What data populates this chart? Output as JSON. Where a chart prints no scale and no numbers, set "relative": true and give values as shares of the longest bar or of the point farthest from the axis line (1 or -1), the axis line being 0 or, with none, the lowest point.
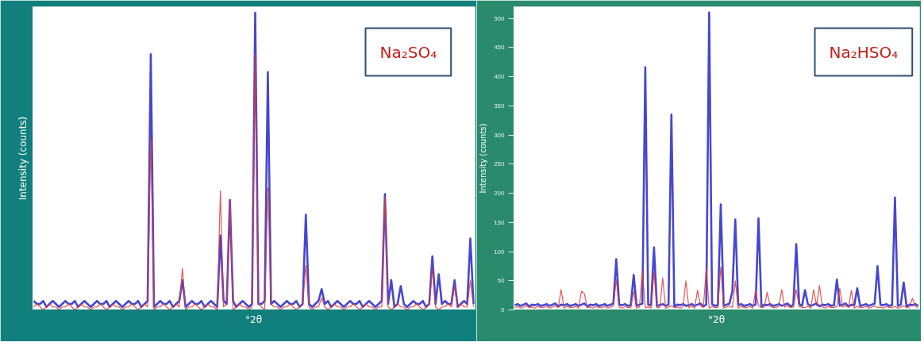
{
  "chart_data": [
    {
      "type": "line",
      "relative": true,
      "ylabel": "Intensity (counts)",
      "xlabel": "°2θ",
      "annotations": [
        "Na₂SO₄"
      ],
      "tick_labels": false,
      "grid": false,
      "marker": "none",
      "categories": [
        null,
        null,
        null,
        null,
        null,
        null,
        null,
        null,
        null,
        null,
        null,
        null,
        null,
        null,
        null,
        null,
        null,
        null,
        null,
        null,
        null,
        null,
        null,
        null,
        null,
        null,
        null,
        null,
        null,
        null,
        null,
        null,
        null,
        null,
        null,
        null,
        null,
        null,
        null,
        null,
        null,
        null,
        null,
        null,
        null,
        null,
        null,
        null,
        null,
        null,
        null,
        null,
        null,
        null,
        null,
        null,
        null,
        null,
        null,
        null,
        null,
        null,
        null,
        null,
        null,
        null,
        null,
        null,
        null,
        null,
        null,
        null,
        null,
        null,
        null,
        null,
        null,
        null,
        null,
        null,
        null,
        null,
        null,
        null,
        null,
        null,
        null,
        null,
        null,
        null,
        null,
        null,
        null,
        null,
        null,
        null,
        null,
        null,
        null,
        null,
        null,
        null,
        null,
        null,
        null,
        null,
        null,
        null,
        null,
        null,
        null,
        null,
        null,
        null,
        null,
        null,
        null,
        null,
        null,
        null,
        null,
        null,
        null,
        null,
        null,
        null,
        null,
        null,
        null,
        null,
        null,
        null,
        null,
        null,
        null,
        null,
        null,
        null,
        null,
        null
      ],
      "series": [
        {
          "color": "#2626c8",
          "values": [
            0.03,
            0.02,
            0.02,
            0.03,
            0.01,
            0.02,
            0.03,
            0.02,
            0.01,
            0.02,
            0.03,
            0.02,
            0.02,
            0.03,
            0.01,
            0.02,
            0.03,
            0.02,
            0.01,
            0.02,
            0.03,
            0.02,
            0.02,
            0.03,
            0.01,
            0.02,
            0.03,
            0.02,
            0.01,
            0.02,
            0.03,
            0.02,
            0.02,
            0.03,
            0.01,
            0.02,
            0.03,
            0.86,
            0.01,
            0.02,
            0.03,
            0.02,
            0.02,
            0.03,
            0.01,
            0.02,
            0.03,
            0.1,
            0.01,
            0.02,
            0.03,
            0.02,
            0.02,
            0.03,
            0.01,
            0.02,
            0.03,
            0.02,
            0.01,
            0.25,
            0.03,
            0.02,
            0.37,
            0.03,
            0.01,
            0.02,
            0.03,
            0.02,
            0.01,
            0.02,
            1,
            0.02,
            0.02,
            0.03,
            0.8,
            0.02,
            0.03,
            0.02,
            0.01,
            0.02,
            0.03,
            0.02,
            0.02,
            0.03,
            0.01,
            0.02,
            0.32,
            0.02,
            0.01,
            0.02,
            0.03,
            0.07,
            0.02,
            0.03,
            0.01,
            0.02,
            0.03,
            0.02,
            0.01,
            0.02,
            0.03,
            0.02,
            0.02,
            0.03,
            0.01,
            0.02,
            0.03,
            0.02,
            0.01,
            0.02,
            0.03,
            0.39,
            0.02,
            0.1,
            0.01,
            0.02,
            0.08,
            0.02,
            0.01,
            0.02,
            0.03,
            0.02,
            0.02,
            0.03,
            0.01,
            0.02,
            0.18,
            0.02,
            0.12,
            0.02,
            0.03,
            0.02,
            0.02,
            0.1,
            0.01,
            0.02,
            0.03,
            0.02,
            0.24,
            0.02
          ]
        },
        {
          "color": "#e03a3a",
          "values": [
            0.01,
            0.02,
            0.01,
            0.0,
            0.01,
            0.02,
            0.01,
            0.01,
            0.0,
            0.01,
            0.01,
            0.02,
            0.01,
            0.0,
            0.01,
            0.02,
            0.01,
            0.01,
            0.0,
            0.01,
            0.01,
            0.02,
            0.01,
            0.0,
            0.01,
            0.02,
            0.01,
            0.01,
            0.0,
            0.01,
            0.01,
            0.02,
            0.01,
            0.0,
            0.01,
            0.02,
            0.01,
            0.58,
            0.0,
            0.01,
            0.01,
            0.02,
            0.01,
            0.0,
            0.01,
            0.02,
            0.01,
            0.14,
            0.0,
            0.01,
            0.01,
            0.02,
            0.01,
            0.0,
            0.01,
            0.02,
            0.01,
            0.01,
            0.0,
            0.4,
            0.01,
            0.02,
            0.37,
            0.0,
            0.01,
            0.02,
            0.01,
            0.01,
            0.0,
            0.01,
            0.86,
            0.02,
            0.01,
            0.0,
            0.41,
            0.02,
            0.01,
            0.01,
            0.0,
            0.01,
            0.01,
            0.02,
            0.01,
            0.0,
            0.01,
            0.02,
            0.15,
            0.01,
            0.0,
            0.01,
            0.01,
            0.04,
            0.01,
            0.0,
            0.01,
            0.02,
            0.01,
            0.01,
            0.0,
            0.01,
            0.01,
            0.02,
            0.01,
            0.0,
            0.01,
            0.02,
            0.01,
            0.01,
            0.0,
            0.01,
            0.01,
            0.38,
            0.01,
            0.0,
            0.01,
            0.02,
            0.01,
            0.01,
            0.0,
            0.01,
            0.01,
            0.02,
            0.01,
            0.0,
            0.01,
            0.02,
            0.14,
            0.01,
            0.0,
            0.01,
            0.01,
            0.02,
            0.01,
            0.08,
            0.01,
            0.02,
            0.01,
            0.01,
            0.1,
            0.01
          ]
        }
      ]
    },
    {
      "type": "line",
      "ylabel": "Intensity (counts)",
      "xlabel": "°2θ",
      "annotations": [
        "Na₂HSO₄"
      ],
      "tick_labels": "y",
      "grid": false,
      "marker": "none",
      "ylim": [
        0,
        520
      ],
      "yticks": [
        0,
        50,
        100,
        150,
        200,
        250,
        300,
        350,
        400,
        450,
        500
      ],
      "categories": [
        null,
        null,
        null,
        null,
        null,
        null,
        null,
        null,
        null,
        null,
        null,
        null,
        null,
        null,
        null,
        null,
        null,
        null,
        null,
        null,
        null,
        null,
        null,
        null,
        null,
        null,
        null,
        null,
        null,
        null,
        null,
        null,
        null,
        null,
        null,
        null,
        null,
        null,
        null,
        null,
        null,
        null,
        null,
        null,
        null,
        null,
        null,
        null,
        null,
        null,
        null,
        null,
        null,
        null,
        null,
        null,
        null,
        null,
        null,
        null,
        null,
        null,
        null,
        null,
        null,
        null,
        null,
        null,
        null,
        null,
        null,
        null,
        null,
        null,
        null,
        null,
        null,
        null,
        null,
        null,
        null,
        null,
        null,
        null,
        null,
        null,
        null,
        null,
        null,
        null,
        null,
        null,
        null,
        null,
        null,
        null,
        null,
        null,
        null,
        null,
        null,
        null,
        null,
        null,
        null,
        null,
        null,
        null,
        null,
        null,
        null,
        null,
        null,
        null,
        null,
        null,
        null,
        null,
        null,
        null,
        null,
        null,
        null,
        null,
        null,
        null,
        null,
        null,
        null,
        null,
        null,
        null,
        null,
        null,
        null,
        null,
        null,
        null,
        null,
        null
      ],
      "series": [
        {
          "color": "#2626c8",
          "values": [
            8,
            10,
            7,
            9,
            11,
            6,
            9,
            8,
            10,
            7,
            8,
            10,
            7,
            9,
            11,
            6,
            9,
            8,
            10,
            7,
            8,
            10,
            7,
            9,
            11,
            6,
            9,
            8,
            10,
            7,
            8,
            10,
            7,
            9,
            11,
            87,
            9,
            8,
            10,
            7,
            8,
            60,
            7,
            9,
            11,
            416,
            9,
            8,
            107,
            7,
            8,
            10,
            7,
            9,
            335,
            6,
            9,
            8,
            10,
            7,
            8,
            10,
            7,
            9,
            11,
            6,
            9,
            510,
            10,
            7,
            8,
            181,
            7,
            9,
            11,
            32,
            155,
            8,
            10,
            7,
            8,
            10,
            7,
            9,
            157,
            6,
            9,
            8,
            10,
            7,
            8,
            10,
            7,
            9,
            11,
            6,
            9,
            113,
            10,
            7,
            34,
            10,
            7,
            9,
            11,
            6,
            9,
            8,
            10,
            7,
            8,
            52,
            7,
            9,
            11,
            6,
            9,
            8,
            37,
            7,
            8,
            10,
            7,
            9,
            11,
            75,
            9,
            8,
            10,
            7,
            8,
            193,
            7,
            9,
            47,
            6,
            9,
            8,
            10,
            7
          ]
        },
        {
          "color": "#e03a3a",
          "values": [
            4,
            6,
            3,
            5,
            7,
            4,
            5,
            3,
            6,
            4,
            4,
            6,
            3,
            5,
            7,
            4,
            35,
            3,
            6,
            4,
            4,
            6,
            3,
            32,
            28,
            4,
            5,
            3,
            6,
            4,
            4,
            6,
            3,
            5,
            7,
            52,
            5,
            3,
            6,
            4,
            4,
            32,
            3,
            5,
            69,
            4,
            5,
            3,
            65,
            4,
            4,
            55,
            3,
            5,
            7,
            4,
            5,
            3,
            6,
            50,
            4,
            6,
            3,
            34,
            7,
            4,
            71,
            3,
            6,
            4,
            4,
            74,
            3,
            5,
            7,
            4,
            50,
            3,
            6,
            4,
            4,
            6,
            3,
            34,
            7,
            4,
            5,
            30,
            6,
            4,
            4,
            6,
            35,
            5,
            7,
            4,
            5,
            35,
            6,
            4,
            4,
            6,
            3,
            35,
            7,
            42,
            5,
            3,
            6,
            4,
            4,
            6,
            37,
            5,
            7,
            4,
            34,
            3,
            6,
            4,
            4,
            6,
            3,
            5,
            7,
            4,
            5,
            3,
            6,
            4,
            4,
            6,
            3,
            5,
            7,
            4,
            5,
            20,
            6,
            4
          ]
        }
      ]
    }
  ]
}
